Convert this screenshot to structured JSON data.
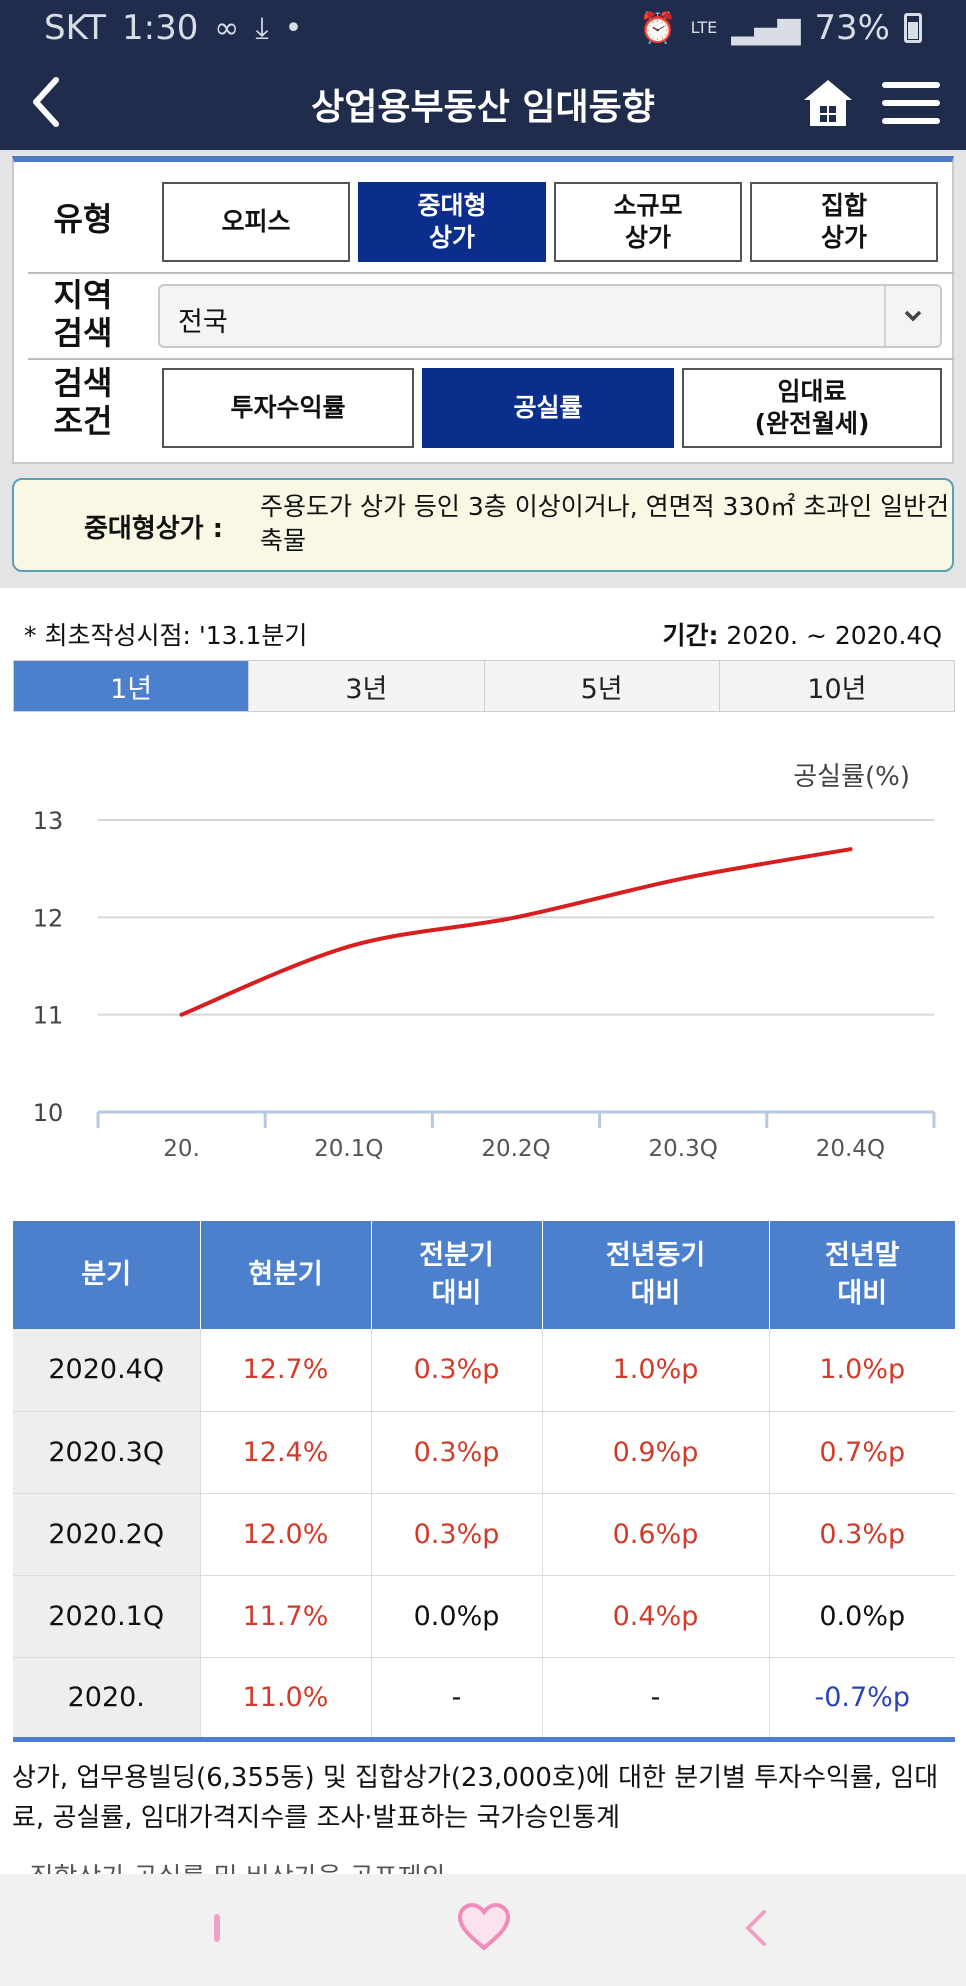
{
  "status_bar": {
    "carrier": "SKT",
    "time": "1:30",
    "network": "LTE",
    "battery": "73%"
  },
  "header": {
    "title": "상업용부동산 임대동향"
  },
  "filters": {
    "type_label": "유형",
    "type_options": [
      {
        "label": "오피스",
        "active": false
      },
      {
        "label": "중대형\n상가",
        "active": true
      },
      {
        "label": "소규모\n상가",
        "active": false
      },
      {
        "label": "집합\n상가",
        "active": false
      }
    ],
    "region_label": "지역\n검색",
    "region_value": "전국",
    "condition_label": "검색\n조건",
    "condition_options": [
      {
        "label": "투자수익률",
        "active": false
      },
      {
        "label": "공실률",
        "active": true
      },
      {
        "label": "임대료\n(완전월세)",
        "active": false
      }
    ]
  },
  "notice": {
    "label": "중대형상가 :",
    "text": "주용도가 상가 등인 3층 이상이거나, 연면적 330㎡ 초과인 일반건축물"
  },
  "info": {
    "first_date": "* 최초작성시점: '13.1분기",
    "period_label": "기간:",
    "period_value": " 2020. ~ 2020.4Q"
  },
  "period_tabs": [
    {
      "label": "1년",
      "active": true
    },
    {
      "label": "3년",
      "active": false
    },
    {
      "label": "5년",
      "active": false
    },
    {
      "label": "10년",
      "active": false
    }
  ],
  "chart_data": {
    "type": "line",
    "title": "",
    "ylabel": "공실률(%)",
    "xlabel": "",
    "categories": [
      "20.",
      "20.1Q",
      "20.2Q",
      "20.3Q",
      "20.4Q"
    ],
    "series": [
      {
        "name": "",
        "values": [
          11.0,
          11.7,
          12.0,
          12.4,
          12.7
        ],
        "color": "#d81e1e"
      }
    ],
    "ylim": [
      10,
      13
    ],
    "yticks": [
      10,
      11,
      12,
      13
    ],
    "grid": true
  },
  "table": {
    "headers": [
      "분기",
      "현분기",
      "전분기\n대비",
      "전년동기\n대비",
      "전년말\n대비"
    ],
    "rows": [
      {
        "quarter": "2020.4Q",
        "current": "12.7%",
        "prev_q": "0.3%p",
        "prev_y": "1.0%p",
        "prev_end": "1.0%p"
      },
      {
        "quarter": "2020.3Q",
        "current": "12.4%",
        "prev_q": "0.3%p",
        "prev_y": "0.9%p",
        "prev_end": "0.7%p"
      },
      {
        "quarter": "2020.2Q",
        "current": "12.0%",
        "prev_q": "0.3%p",
        "prev_y": "0.6%p",
        "prev_end": "0.3%p"
      },
      {
        "quarter": "2020.1Q",
        "current": "11.7%",
        "prev_q": "0.0%p",
        "prev_y": "0.4%p",
        "prev_end": "0.0%p"
      },
      {
        "quarter": "2020.",
        "current": "11.0%",
        "prev_q": "-",
        "prev_y": "-",
        "prev_end": "-0.7%p"
      }
    ]
  },
  "footnote": "상가, 업무용빌딩(6,355동) 및 집합상가(23,000호)에 대한 분기별 투자수익률, 임대료, 공실률, 임대가격지수를 조사·발표하는 국가승인통계",
  "footnote_partial": "- 집합상가 공실률 및 비상가율 공표제외",
  "colors": {
    "header_bg": "#1f2c4c",
    "accent": "#4c80cc",
    "active_button": "#0b2d8c",
    "positive": "#d23b2a",
    "negative": "#2a44b4"
  }
}
